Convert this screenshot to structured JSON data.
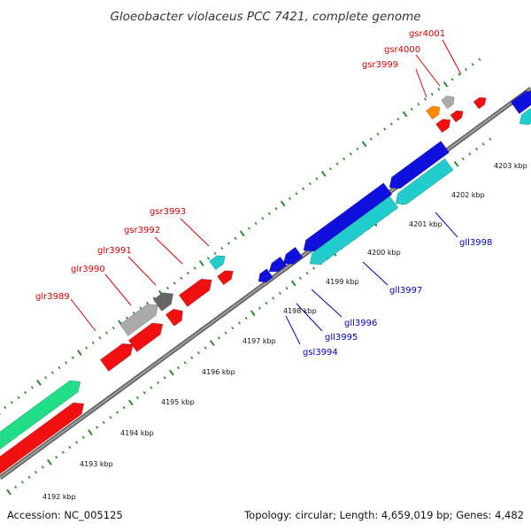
{
  "title": "Gloeobacter violaceus PCC 7421, complete genome",
  "footer": {
    "accession": "Accession: NC_005125",
    "summary": "Topology: circular; Length: 4,659,019 bp; Genes: 4,482"
  },
  "colors": {
    "backbone": "#888888",
    "ticks": "#2a8a2a",
    "forward_label": "#dd0000",
    "reverse_label": "#0000cc",
    "red": "#f01010",
    "green": "#22dd88",
    "blue": "#1010dd",
    "cyan": "#22cccc",
    "gray": "#aaaaaa",
    "darkgray": "#666666",
    "orange": "#ff8800"
  },
  "scale_labels": [
    "4192 kbp",
    "4193 kbp",
    "4194 kbp",
    "4195 kbp",
    "4196 kbp",
    "4197 kbp",
    "4198 kbp",
    "4199 kbp",
    "4200 kbp",
    "4201 kbp",
    "4202 kbp",
    "4203 kbp"
  ],
  "forward_gene_labels": [
    "glr3989",
    "glr3990",
    "glr3991",
    "gsr3992",
    "gsr3993",
    "gsr3999",
    "gsr4000",
    "gsr4001"
  ],
  "reverse_gene_labels": [
    "gsl3994",
    "gll3995",
    "gll3996",
    "gll3997",
    "gll3998"
  ]
}
